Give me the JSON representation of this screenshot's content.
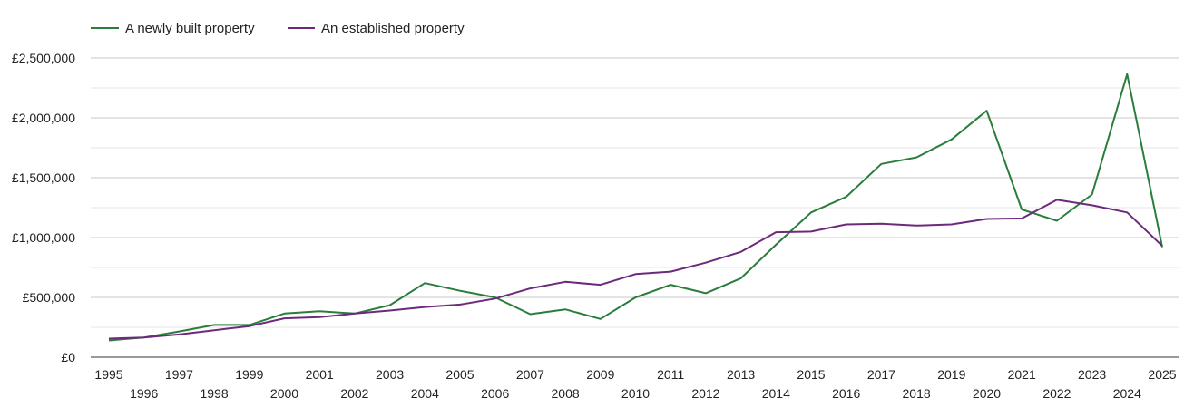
{
  "chart_data": {
    "type": "line",
    "title": "",
    "xlabel": "",
    "ylabel": "",
    "ylim": [
      0,
      2500000
    ],
    "y_ticks": [
      0,
      500000,
      1000000,
      1500000,
      2000000,
      2500000
    ],
    "y_tick_labels": [
      "£0",
      "£500,000",
      "£1,000,000",
      "£1,500,000",
      "£2,000,000",
      "£2,500,000"
    ],
    "grid": true,
    "legend_position": "top-left",
    "x": [
      1995,
      1996,
      1997,
      1998,
      1999,
      2000,
      2001,
      2002,
      2003,
      2004,
      2005,
      2006,
      2007,
      2008,
      2009,
      2010,
      2011,
      2012,
      2013,
      2014,
      2015,
      2016,
      2017,
      2018,
      2019,
      2020,
      2021,
      2022,
      2023,
      2024,
      2025
    ],
    "series": [
      {
        "name": "A newly built property",
        "color": "#2a7d3c",
        "values": [
          140000,
          165000,
          215000,
          270000,
          270000,
          365000,
          385000,
          365000,
          435000,
          620000,
          555000,
          500000,
          360000,
          400000,
          320000,
          500000,
          605000,
          535000,
          660000,
          940000,
          1210000,
          1340000,
          1615000,
          1670000,
          1820000,
          2060000,
          1235000,
          1140000,
          1360000,
          2365000,
          920000
        ]
      },
      {
        "name": "An established property",
        "color": "#6d2a7d",
        "values": [
          155000,
          165000,
          190000,
          225000,
          260000,
          325000,
          335000,
          365000,
          390000,
          420000,
          440000,
          490000,
          575000,
          630000,
          605000,
          695000,
          715000,
          790000,
          880000,
          1045000,
          1050000,
          1110000,
          1115000,
          1100000,
          1110000,
          1155000,
          1160000,
          1315000,
          1270000,
          1210000,
          930000
        ]
      }
    ]
  }
}
